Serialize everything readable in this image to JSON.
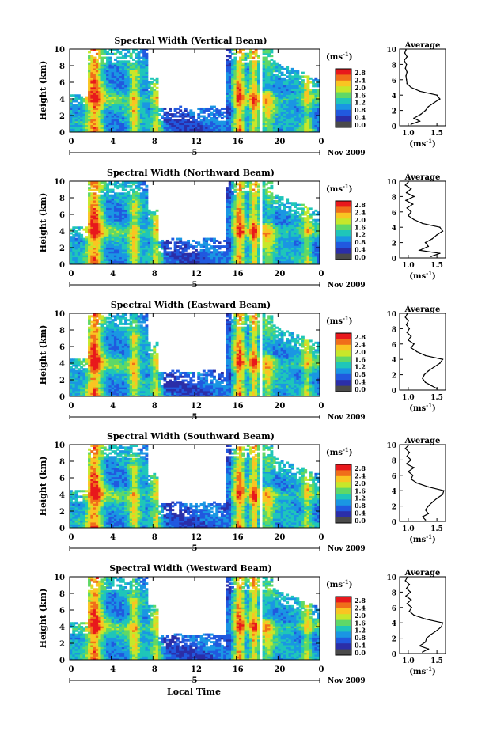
{
  "page": {
    "xlabel": "Local Time"
  },
  "colorbar": {
    "unit": "(ms",
    "unit_sup": "-1",
    "unit_close": ")",
    "tick_labels": [
      "2.8",
      "2.4",
      "2.0",
      "1.6",
      "1.2",
      "0.8",
      "0.4",
      "0.0"
    ],
    "colors": [
      "#e8181c",
      "#f06e1a",
      "#f9c522",
      "#c7e72a",
      "#5fd867",
      "#1fc6b9",
      "#1a96e3",
      "#2159df",
      "#2b2ea8",
      "#4a4a4a"
    ]
  },
  "chart_data": [
    {
      "type": "heatmap",
      "title": "Spectral Width (Vertical Beam)",
      "ylabel": "Height (km)",
      "ylim": [
        0,
        10
      ],
      "xlim": [
        0,
        24
      ],
      "x_ticks": [
        "0",
        "4",
        "8",
        "12",
        "16",
        "20",
        "0"
      ],
      "y_ticks": [
        "0",
        "2",
        "4",
        "6",
        "8",
        "10"
      ],
      "date_day": "5",
      "date_label": "Nov 2009",
      "average_profile": {
        "title": "Average",
        "xlabel": "(ms",
        "xlabel_sup": "-1",
        "xlabel_close": ")",
        "x_ticks": [
          "1.0",
          "1.5"
        ],
        "xlim": [
          0.85,
          1.65
        ],
        "height": [
          0.2,
          0.6,
          1.0,
          1.5,
          2.0,
          2.5,
          3.0,
          3.5,
          4.0,
          4.5,
          5.0,
          5.5,
          6.0,
          6.5,
          7.0,
          7.5,
          8.0,
          8.5,
          9.0,
          9.5,
          9.9
        ],
        "width": [
          1.05,
          1.2,
          1.1,
          1.22,
          1.3,
          1.35,
          1.45,
          1.55,
          1.5,
          1.2,
          1.05,
          0.98,
          0.97,
          0.96,
          0.98,
          0.95,
          0.97,
          0.93,
          0.98,
          0.94,
          0.96
        ]
      }
    },
    {
      "type": "heatmap",
      "title": "Spectral Width (Northward Beam)",
      "ylabel": "Height (km)",
      "ylim": [
        0,
        10
      ],
      "xlim": [
        0,
        24
      ],
      "x_ticks": [
        "0",
        "4",
        "8",
        "12",
        "16",
        "20",
        "0"
      ],
      "y_ticks": [
        "0",
        "2",
        "4",
        "6",
        "8",
        "10"
      ],
      "date_day": "5",
      "date_label": "Nov 2009",
      "average_profile": {
        "title": "Average",
        "xlabel": "(ms",
        "xlabel_sup": "-1",
        "xlabel_close": ")",
        "x_ticks": [
          "1.0",
          "1.5"
        ],
        "xlim": [
          0.85,
          1.65
        ],
        "height": [
          0.2,
          0.6,
          1.0,
          1.5,
          2.0,
          2.5,
          3.0,
          3.5,
          4.0,
          4.5,
          5.0,
          5.5,
          6.0,
          6.5,
          7.0,
          7.5,
          8.0,
          8.5,
          9.0,
          9.5,
          9.9
        ],
        "width": [
          1.4,
          1.55,
          1.2,
          1.35,
          1.3,
          1.42,
          1.5,
          1.6,
          1.55,
          1.25,
          1.1,
          1.0,
          1.05,
          0.98,
          1.08,
          0.96,
          1.1,
          0.97,
          1.05,
          0.95,
          1.0
        ]
      }
    },
    {
      "type": "heatmap",
      "title": "Spectral Width (Eastward Beam)",
      "ylabel": "Height (km)",
      "ylim": [
        0,
        10
      ],
      "xlim": [
        0,
        24
      ],
      "x_ticks": [
        "0",
        "4",
        "8",
        "12",
        "16",
        "20",
        "0"
      ],
      "y_ticks": [
        "0",
        "2",
        "4",
        "6",
        "8",
        "10"
      ],
      "date_day": "5",
      "date_label": "Nov 2009",
      "average_profile": {
        "title": "Average",
        "xlabel": "(ms",
        "xlabel_sup": "-1",
        "xlabel_close": ")",
        "x_ticks": [
          "1.0",
          "1.5"
        ],
        "xlim": [
          0.85,
          1.65
        ],
        "height": [
          0.2,
          0.6,
          1.0,
          1.5,
          2.0,
          2.5,
          3.0,
          3.5,
          4.0,
          4.5,
          5.0,
          5.5,
          6.0,
          6.5,
          7.0,
          7.5,
          8.0,
          8.5,
          9.0,
          9.5,
          9.9
        ],
        "width": [
          1.5,
          1.4,
          1.3,
          1.25,
          1.28,
          1.35,
          1.45,
          1.55,
          1.6,
          1.3,
          1.15,
          1.05,
          1.1,
          1.0,
          1.05,
          0.98,
          1.02,
          0.97,
          1.0,
          0.95,
          0.98
        ]
      }
    },
    {
      "type": "heatmap",
      "title": "Spectral Width (Southward Beam)",
      "ylabel": "Height (km)",
      "ylim": [
        0,
        10
      ],
      "xlim": [
        0,
        24
      ],
      "x_ticks": [
        "0",
        "4",
        "8",
        "12",
        "16",
        "20",
        "0"
      ],
      "y_ticks": [
        "0",
        "2",
        "4",
        "6",
        "8",
        "10"
      ],
      "date_day": "5",
      "date_label": "Nov 2009",
      "average_profile": {
        "title": "Average",
        "xlabel": "(ms",
        "xlabel_sup": "-1",
        "xlabel_close": ")",
        "x_ticks": [
          "1.0",
          "1.5"
        ],
        "xlim": [
          0.85,
          1.65
        ],
        "height": [
          0.2,
          0.6,
          1.0,
          1.5,
          2.0,
          2.5,
          3.0,
          3.5,
          4.0,
          4.5,
          5.0,
          5.5,
          6.0,
          6.5,
          7.0,
          7.5,
          8.0,
          8.5,
          9.0,
          9.5,
          9.9
        ],
        "width": [
          1.3,
          1.25,
          1.35,
          1.3,
          1.35,
          1.42,
          1.5,
          1.6,
          1.62,
          1.35,
          1.15,
          1.05,
          1.08,
          1.0,
          1.1,
          0.97,
          1.05,
          0.98,
          1.02,
          0.95,
          1.0
        ]
      }
    },
    {
      "type": "heatmap",
      "title": "Spectral Width (Westward Beam)",
      "ylabel": "Height (km)",
      "ylim": [
        0,
        10
      ],
      "xlim": [
        0,
        24
      ],
      "x_ticks": [
        "0",
        "4",
        "8",
        "12",
        "16",
        "20",
        "0"
      ],
      "y_ticks": [
        "0",
        "2",
        "4",
        "6",
        "8",
        "10"
      ],
      "date_day": "5",
      "date_label": "Nov 2009",
      "average_profile": {
        "title": "Average",
        "xlabel": "(ms",
        "xlabel_sup": "-1",
        "xlabel_close": ")",
        "x_ticks": [
          "1.0",
          "1.5"
        ],
        "xlim": [
          0.85,
          1.65
        ],
        "height": [
          0.2,
          0.6,
          1.0,
          1.5,
          2.0,
          2.5,
          3.0,
          3.5,
          4.0,
          4.5,
          5.0,
          5.5,
          6.0,
          6.5,
          7.0,
          7.5,
          8.0,
          8.5,
          9.0,
          9.5,
          9.9
        ],
        "width": [
          1.25,
          1.35,
          1.2,
          1.3,
          1.32,
          1.4,
          1.5,
          1.58,
          1.6,
          1.3,
          1.1,
          1.02,
          1.06,
          0.98,
          1.05,
          0.96,
          1.04,
          0.97,
          1.02,
          0.95,
          0.98
        ]
      }
    }
  ]
}
